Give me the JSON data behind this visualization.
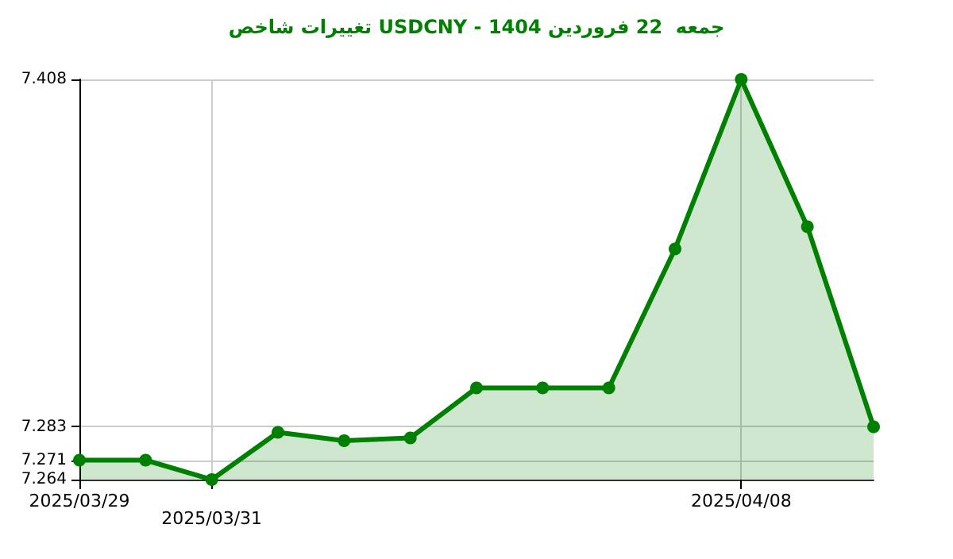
{
  "chart_data": {
    "type": "area",
    "title": "تغییرات شاخص USDCNY - جمعه  22 فروردین 1404",
    "categories": [
      "2025/03/29",
      null,
      "2025/03/31",
      null,
      null,
      null,
      null,
      null,
      null,
      null,
      "2025/04/08",
      null,
      null
    ],
    "series": [
      {
        "color": "#008000",
        "values": [
          7.271,
          7.271,
          7.264,
          7.281,
          7.278,
          7.279,
          7.297,
          7.297,
          7.297,
          7.347,
          7.408,
          7.355,
          7.283
        ]
      }
    ],
    "ylim": [
      7.264,
      7.408
    ],
    "yticks": [
      7.264,
      7.271,
      7.283,
      7.408
    ],
    "grid": true,
    "marker": "circle",
    "line_style": "solid"
  }
}
